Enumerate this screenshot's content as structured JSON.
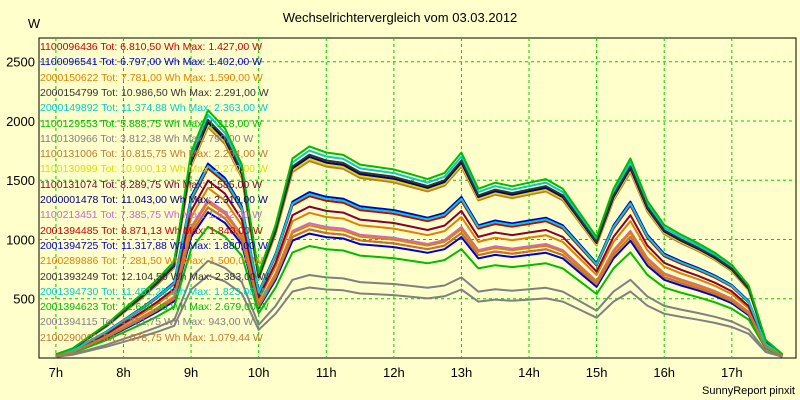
{
  "chart_data": {
    "type": "line",
    "title": "Wechselrichtervergleich vom 03.03.2012",
    "ylabel": "W",
    "xlabel": "",
    "footer": "SunnyReport pinxit",
    "ylim": [
      0,
      2700
    ],
    "xlim": [
      6.75,
      17.95
    ],
    "grid": true,
    "y_ticks": [
      500,
      1000,
      1500,
      2000,
      2500
    ],
    "x_ticks": [
      7,
      8,
      9,
      10,
      11,
      12,
      13,
      14,
      15,
      16,
      17
    ],
    "x_tick_labels": [
      "7h",
      "8h",
      "9h",
      "10h",
      "11h",
      "12h",
      "13h",
      "14h",
      "15h",
      "16h",
      "17h"
    ],
    "x": [
      7.0,
      7.25,
      7.5,
      7.75,
      8.0,
      8.25,
      8.5,
      8.75,
      9.0,
      9.25,
      9.5,
      9.75,
      10.0,
      10.25,
      10.5,
      10.75,
      11.0,
      11.25,
      11.5,
      11.75,
      12.0,
      12.25,
      12.5,
      12.75,
      13.0,
      13.25,
      13.5,
      13.75,
      14.0,
      14.25,
      14.5,
      14.75,
      15.0,
      15.25,
      15.5,
      15.75,
      16.0,
      16.25,
      16.5,
      16.75,
      17.0,
      17.25,
      17.5,
      17.75
    ],
    "series": [
      {
        "name": "1100096436 Tot: 6.810,50 Wh Max: 1.427,00 W",
        "label": "1100096436 Tot: 6.810,50 Wh Max: 1.427,00 W",
        "color": "#cc0000",
        "scale": 0.62
      },
      {
        "name": "1100096541 Tot: 6.797,00 Wh Max: 1.402,00 W",
        "label": "1100096541 Tot: 6.797,00 Wh Max: 1.402,00 W",
        "color": "#0000cc",
        "scale": 0.6
      },
      {
        "name": "2000150622 Tot: 7.781,00 Wh Max: 1.590,00 W",
        "label": "2000150622 Tot: 7.781,00 Wh Max: 1.590,00 W",
        "color": "#e08000",
        "scale": 0.7
      },
      {
        "name": "2000154799 Tot: 10.986,50 Wh Max: 2.291,00 W",
        "label": "2000154799 Tot: 10.986,50 Wh Max: 2.291,00 W",
        "color": "#333333",
        "scale": 0.96
      },
      {
        "name": "2000149892 Tot: 11.374,88 Wh Max: 2.363,00 W",
        "label": "2000149892 Tot: 11.374,88 Wh Max: 2.363,00 W",
        "color": "#00cccc",
        "scale": 1.0
      },
      {
        "name": "1100129553 Tot: 5.888,75 Wh Max: 1.218,00 W",
        "label": "1100129553 Tot: 5.888,75 Wh Max: 1.218,00 W",
        "color": "#00bb00",
        "scale": 0.54
      },
      {
        "name": "1100130966 Tot: 3.812,38 Wh Max: 790,00 W",
        "label": "1100130966 Tot: 3.812,38 Wh Max: 790,00 W",
        "color": "#808080",
        "scale": 0.34
      },
      {
        "name": "1100131006 Tot: 10.815,75 Wh Max: 2.254,00 W",
        "label": "1100131006 Tot: 10.815,75 Wh Max: 2.254,00 W",
        "color": "#c07830",
        "scale": 0.95
      },
      {
        "name": "1100130999 Tot: 10.900,13 Wh Max: 2.270,00 W",
        "label": "1100130999 Tot: 10.900,13 Wh Max: 2.270,00 W",
        "color": "#dddd00",
        "scale": 0.96
      },
      {
        "name": "1100131074 Tot: 8.289,75 Wh Max: 1.585,00 W",
        "label": "1100131074 Tot: 8.289,75 Wh Max: 1.585,00 W",
        "color": "#880033",
        "scale": 0.73
      },
      {
        "name": "2000001478 Tot: 11.043,00 Wh Max: 2.310,00 W",
        "label": "2000001478 Tot: 11.043,00 Wh Max: 2.310,00 W",
        "color": "#000080",
        "scale": 0.97
      },
      {
        "name": "1100213451 Tot: 7.385,75 Wh Max: 1.532,00 W",
        "label": "1100213451 Tot: 7.385,75 Wh Max: 1.532,00 W",
        "color": "#cc66cc",
        "scale": 0.65
      },
      {
        "name": "2001394485 Tot: 8.871,13 Wh Max: 1.840,00 W",
        "label": "2001394485 Tot: 8.871,13 Wh Max: 1.840,00 W",
        "color": "#cc0000",
        "scale": 0.78
      },
      {
        "name": "2001394725 Tot: 11.317,88 Wh Max: 1.880,00 W",
        "label": "2001394725 Tot: 11.317,88 Wh Max: 1.880,00 W",
        "color": "#0000cc",
        "scale": 0.8
      },
      {
        "name": "2100289886 Tot: 7.281,50 Wh Max: 1.500,00 W",
        "label": "2100289886 Tot: 7.281,50 Wh Max: 1.500,00 W",
        "color": "#e08000",
        "scale": 0.64
      },
      {
        "name": "2001393249 Tot: 12.104,50 Wh Max: 2.383,00 W",
        "label": "2001393249 Tot: 12.104,50 Wh Max: 2.383,00 W",
        "color": "#333333",
        "scale": 0.98
      },
      {
        "name": "2001394730 Tot: 11.451,25 Wh Max: 1.823,00 W",
        "label": "2001394730 Tot: 11.451,25 Wh Max: 1.823,00 W",
        "color": "#00cccc",
        "scale": 0.79
      },
      {
        "name": "2001394623 Tot: 12.646,38 Wh Max: 2.679,00 W",
        "label": "2001394623 Tot: 12.646,38 Wh Max: 2.679,00 W",
        "color": "#00bb00",
        "scale": 1.02
      },
      {
        "name": "2001394115 Tot: 4.531,75 Wh Max: 943,00 W",
        "label": "2001394115 Tot: 4.531,75 Wh Max: 943,00 W",
        "color": "#808080",
        "scale": 0.4
      },
      {
        "name": "2100290002 Tot: 7.078,75 Wh Max: 1.079,44 W",
        "label": "2100290002 Tot: 7.078,75 Wh Max: 1.079,44 W",
        "color": "#c07830",
        "scale": 0.62
      }
    ],
    "base_profile": [
      30,
      80,
      180,
      280,
      400,
      520,
      650,
      800,
      1700,
      2050,
      1900,
      1600,
      700,
      1100,
      1650,
      1750,
      1700,
      1680,
      1600,
      1580,
      1560,
      1520,
      1480,
      1530,
      1700,
      1400,
      1450,
      1420,
      1450,
      1480,
      1400,
      1200,
      1000,
      1400,
      1650,
      1300,
      1100,
      1020,
      950,
      870,
      770,
      600,
      150,
      30
    ]
  }
}
